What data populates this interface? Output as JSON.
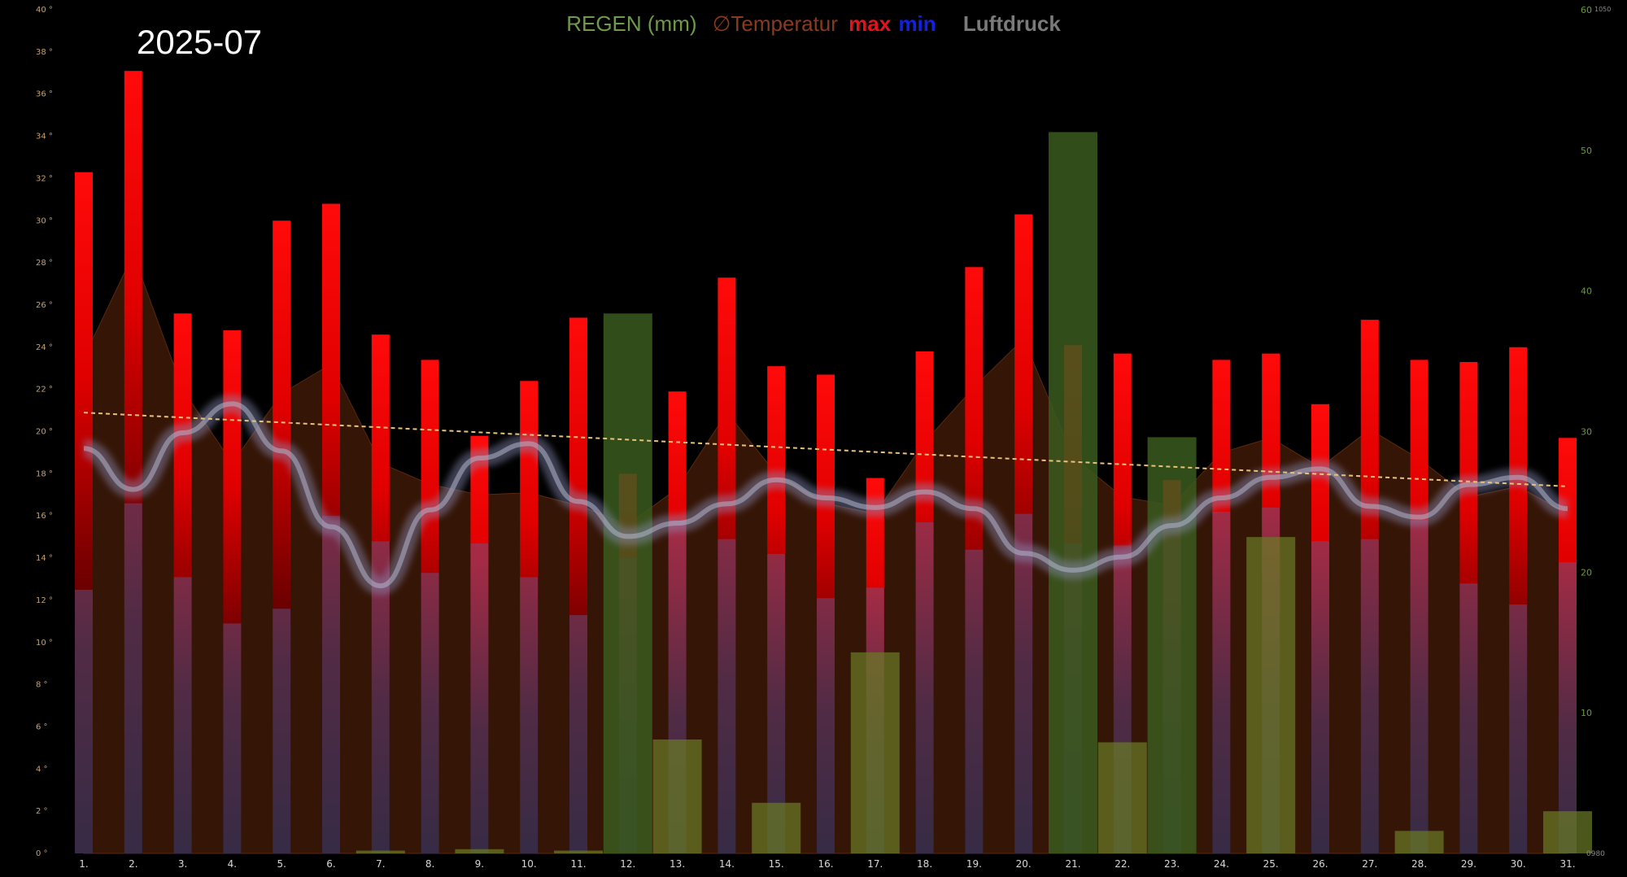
{
  "month": "2025-07",
  "legend": {
    "rain": "REGEN (mm)",
    "avg_symbol": "∅",
    "avg": "Temperatur",
    "max": "max",
    "min": "min",
    "pressure": "Luftdruck"
  },
  "chart_data": {
    "type": "bar",
    "title": "2025-07",
    "categories": [
      "1.",
      "2.",
      "3.",
      "4.",
      "5.",
      "6.",
      "7.",
      "8.",
      "9.",
      "10.",
      "11.",
      "12.",
      "13.",
      "14.",
      "15.",
      "16.",
      "17.",
      "18.",
      "19.",
      "20.",
      "21.",
      "22.",
      "23.",
      "24.",
      "25.",
      "26.",
      "27.",
      "28.",
      "29.",
      "30.",
      "31."
    ],
    "series": [
      {
        "name": "max",
        "axis": "temperature",
        "values": [
          32.3,
          37.1,
          25.6,
          24.8,
          30.0,
          30.8,
          24.6,
          23.4,
          19.8,
          22.4,
          25.4,
          18.0,
          21.9,
          27.3,
          23.1,
          22.7,
          17.8,
          23.8,
          27.8,
          30.3,
          24.1,
          23.7,
          17.7,
          23.4,
          23.7,
          21.3,
          25.3,
          23.4,
          23.3,
          24.0,
          19.7
        ]
      },
      {
        "name": "min",
        "axis": "temperature",
        "values": [
          12.5,
          16.6,
          13.1,
          10.9,
          11.6,
          16.0,
          14.8,
          13.3,
          14.7,
          13.1,
          11.3,
          14.0,
          15.8,
          14.9,
          14.2,
          12.1,
          12.6,
          15.7,
          14.4,
          16.1,
          14.7,
          14.6,
          15.8,
          16.2,
          16.4,
          14.8,
          14.9,
          15.8,
          12.8,
          11.8,
          13.8
        ]
      },
      {
        "name": "Temperatur",
        "axis": "temperature",
        "values": [
          23.5,
          28.4,
          22.0,
          18.5,
          21.8,
          23.2,
          18.5,
          17.5,
          17.0,
          17.1,
          16.5,
          15.6,
          17.3,
          20.9,
          18.0,
          16.6,
          16.1,
          19.5,
          22.1,
          24.4,
          18.8,
          16.9,
          16.5,
          19.0,
          19.7,
          18.3,
          20.1,
          18.7,
          16.9,
          17.4,
          16.1
        ]
      },
      {
        "name": "REGEN (mm)",
        "axis": "rain",
        "values": [
          0,
          0,
          0,
          0,
          0,
          0,
          0.2,
          0,
          0.3,
          0,
          0.2,
          38.4,
          8.1,
          0,
          3.6,
          0,
          14.3,
          0,
          0,
          0,
          51.3,
          7.9,
          29.6,
          0,
          22.5,
          0,
          0,
          1.6,
          0,
          0,
          3.0
        ]
      },
      {
        "name": "Luftdruck",
        "axis": "pressure",
        "values": [
          1013.6,
          1010.2,
          1014.9,
          1017.3,
          1013.4,
          1007.1,
          1002.2,
          1008.5,
          1012.8,
          1014.0,
          1009.2,
          1006.3,
          1007.4,
          1009.0,
          1011.0,
          1009.5,
          1008.7,
          1010.0,
          1008.6,
          1004.9,
          1003.5,
          1004.6,
          1007.2,
          1009.5,
          1011.2,
          1011.9,
          1008.8,
          1007.9,
          1010.6,
          1011.2,
          1008.6
        ]
      }
    ],
    "trend": {
      "name": "Temperatur trend",
      "start": 20.9,
      "end": 17.4
    },
    "axes": {
      "temperature": {
        "min": 0,
        "max": 40,
        "step": 2,
        "unit": "°"
      },
      "rain": {
        "min": 0,
        "max": 60,
        "ticks": [
          10,
          20,
          30,
          40,
          50,
          60
        ]
      },
      "pressure": {
        "min": 980,
        "max": 1050,
        "labels": [
          "0980",
          "1050"
        ]
      }
    },
    "grid": false,
    "legend_position": "top-center"
  }
}
